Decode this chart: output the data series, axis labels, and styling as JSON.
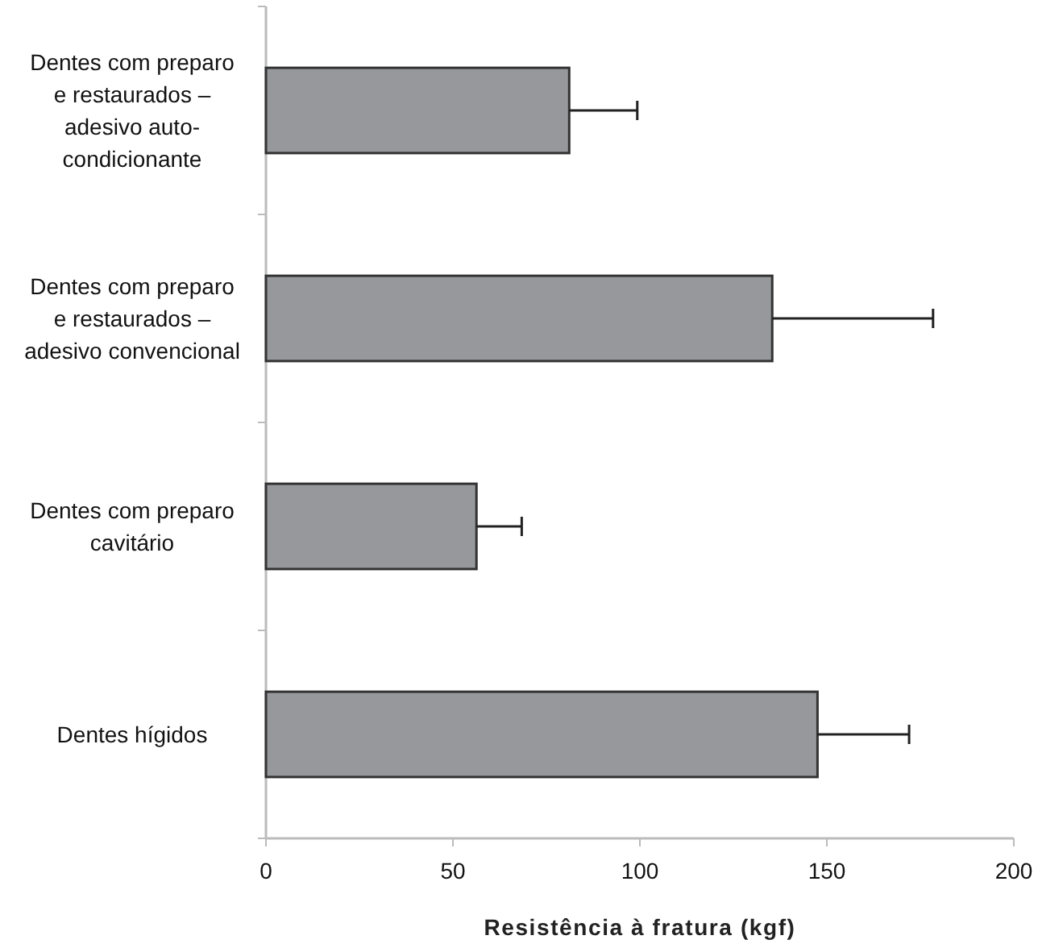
{
  "chart_data": {
    "type": "bar",
    "orientation": "horizontal",
    "xlabel": "Resistência à fratura (kgf)",
    "categories": [
      "Dentes com preparo\ne restaurados –\nadesivo auto-\ncondicionante",
      "Dentes com preparo\ne restaurados –\nadesivo convencional",
      "Dentes com preparo\ncavitário",
      "Dentes hígidos"
    ],
    "values": [
      81.1,
      135.4,
      56.3,
      147.5
    ],
    "errors": [
      18.2,
      43,
      12.1,
      24.5
    ],
    "color": "#97989c",
    "xlim": [
      0,
      200
    ],
    "xticks": [
      0,
      50,
      100,
      150,
      200
    ],
    "grid": false
  }
}
